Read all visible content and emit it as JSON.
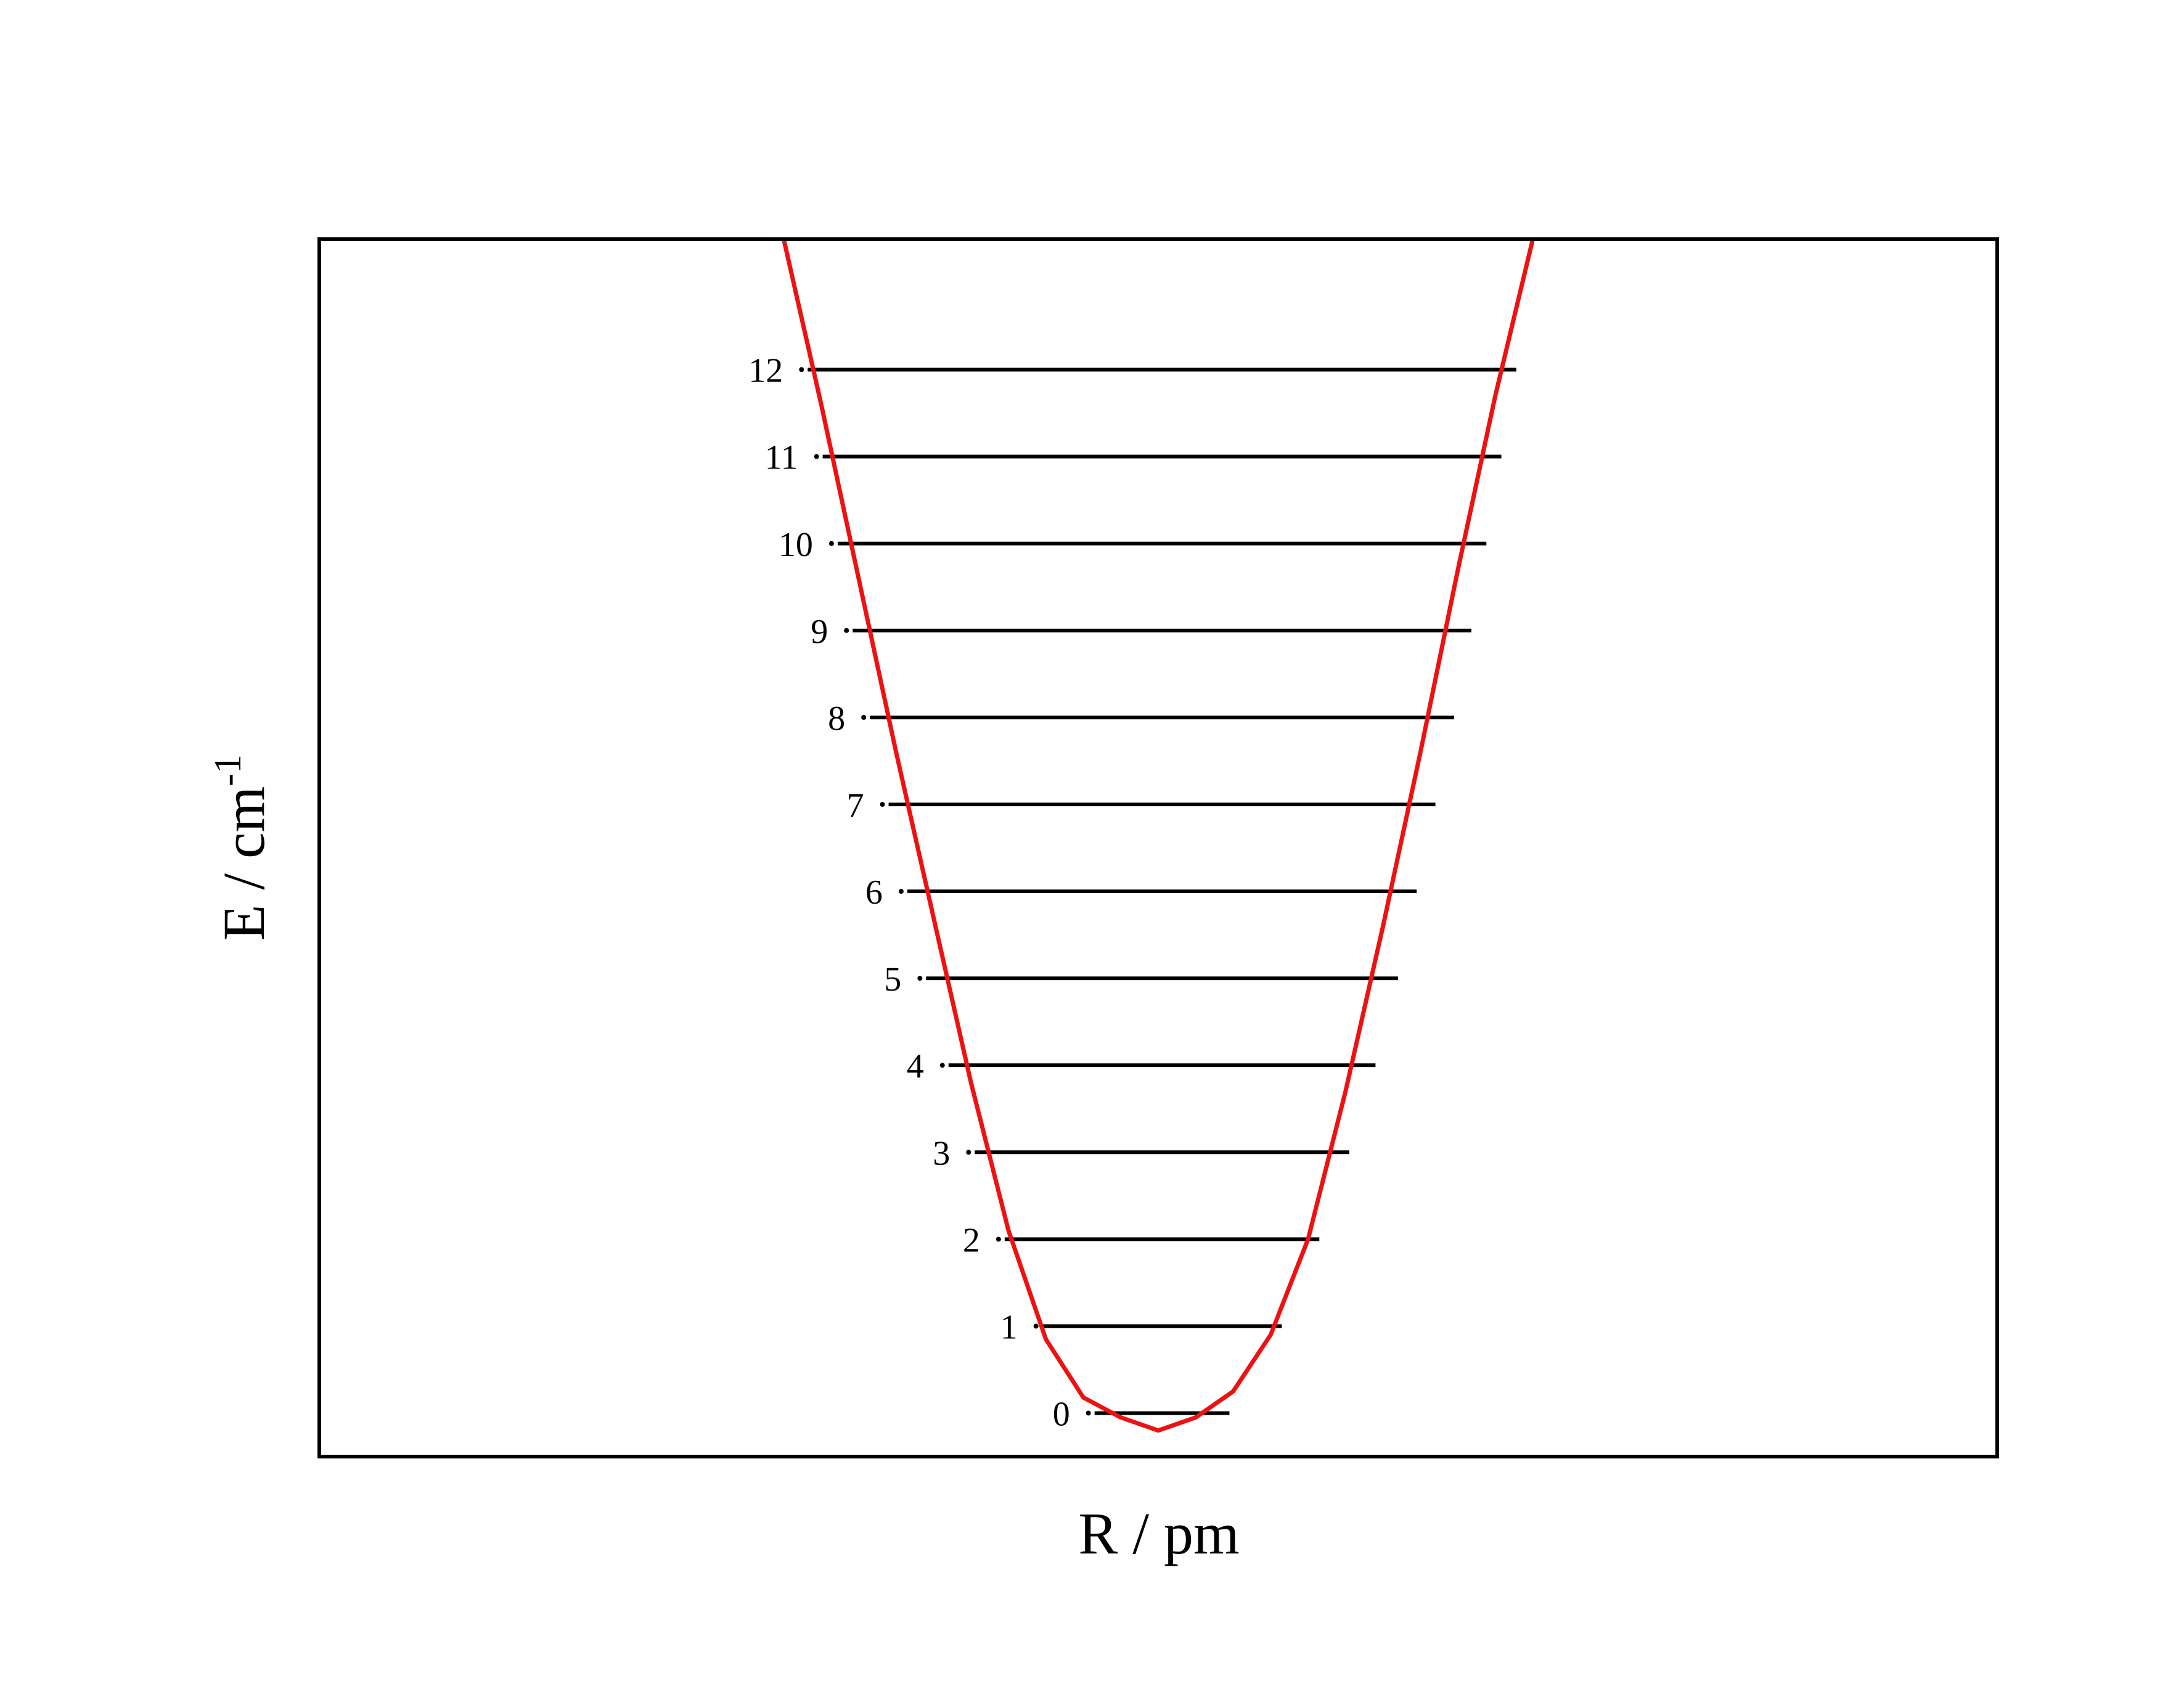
{
  "chart_data": {
    "type": "line",
    "title": "",
    "xlabel": "R / pm",
    "ylabel": {
      "base": "E / cm",
      "superscript": "-1"
    },
    "xlim": [
      -1.12,
      1.12
    ],
    "ylim": [
      -0.5,
      13.5
    ],
    "grid": false,
    "legend": "none",
    "colors": {
      "potential": "#ee1111",
      "levels": "#000000",
      "frame": "#000000"
    },
    "potential_curve": {
      "name": "",
      "x": [
        -0.5,
        -0.45,
        -0.4,
        -0.35,
        -0.3,
        -0.25,
        -0.2,
        -0.15,
        -0.1,
        -0.05,
        0.0,
        0.05,
        0.1,
        0.15,
        0.2,
        0.25,
        0.3,
        0.35,
        0.4,
        0.45,
        0.5
      ],
      "y": [
        13.5,
        11.6,
        9.6,
        7.6,
        5.7,
        3.8,
        2.1,
        0.85,
        0.18,
        -0.05,
        -0.2,
        -0.05,
        0.25,
        0.9,
        2.0,
        3.7,
        5.6,
        7.6,
        9.7,
        11.7,
        13.5
      ]
    },
    "levels": [
      {
        "label": "0",
        "energy": 0,
        "x_left": -0.085,
        "x_right": 0.095
      },
      {
        "label": "1",
        "energy": 1,
        "x_left": -0.155,
        "x_right": 0.165
      },
      {
        "label": "2",
        "energy": 2,
        "x_left": -0.205,
        "x_right": 0.215
      },
      {
        "label": "3",
        "energy": 3,
        "x_left": -0.245,
        "x_right": 0.255
      },
      {
        "label": "4",
        "energy": 4,
        "x_left": -0.28,
        "x_right": 0.29
      },
      {
        "label": "5",
        "energy": 5,
        "x_left": -0.31,
        "x_right": 0.32
      },
      {
        "label": "6",
        "energy": 6,
        "x_left": -0.335,
        "x_right": 0.345
      },
      {
        "label": "7",
        "energy": 7,
        "x_left": -0.36,
        "x_right": 0.37
      },
      {
        "label": "8",
        "energy": 8,
        "x_left": -0.385,
        "x_right": 0.395
      },
      {
        "label": "9",
        "energy": 9,
        "x_left": -0.408,
        "x_right": 0.418
      },
      {
        "label": "10",
        "energy": 10,
        "x_left": -0.428,
        "x_right": 0.438
      },
      {
        "label": "11",
        "energy": 11,
        "x_left": -0.448,
        "x_right": 0.458
      },
      {
        "label": "12",
        "energy": 12,
        "x_left": -0.468,
        "x_right": 0.478
      }
    ]
  }
}
